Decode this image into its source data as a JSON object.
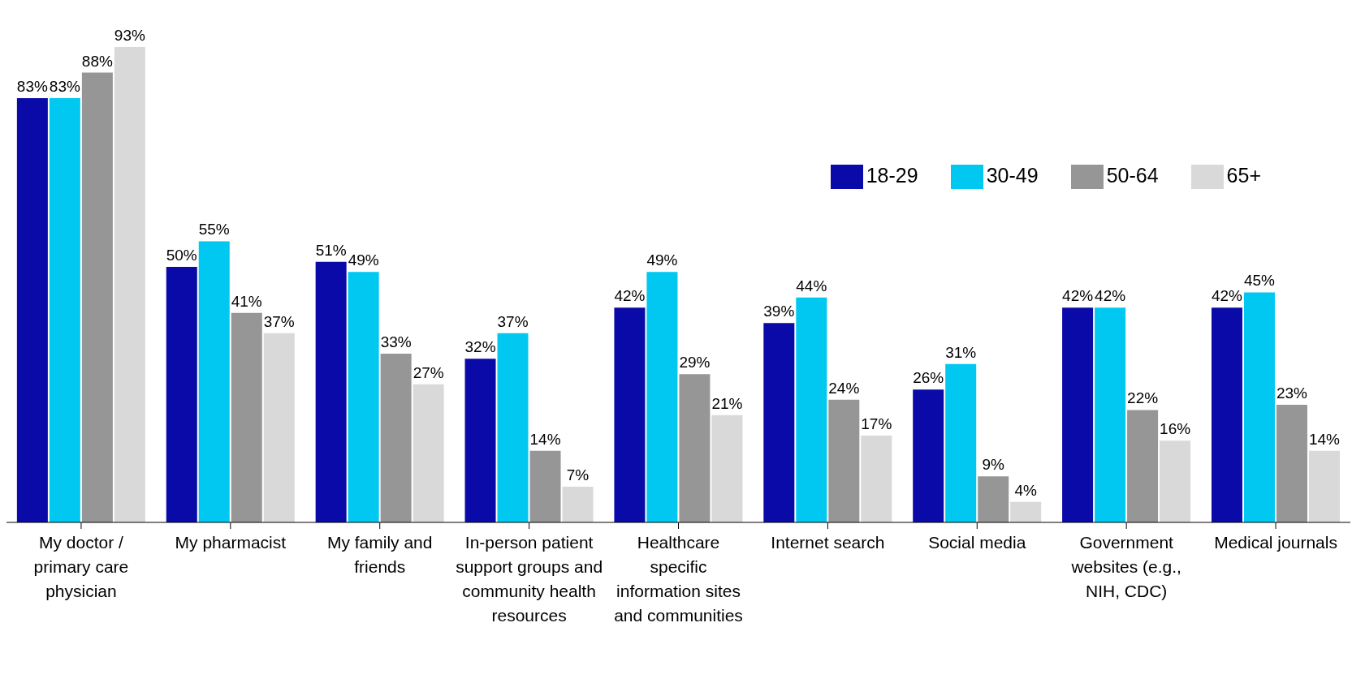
{
  "chart_data": {
    "type": "bar",
    "categories": [
      "My doctor / primary care physician",
      "My pharmacist",
      "My family and friends",
      "In-person patient support groups and community health resources",
      "Healthcare specific information sites and communities",
      "Internet search",
      "Social media",
      "Government websites (e.g., NIH, CDC)",
      "Medical journals"
    ],
    "series": [
      {
        "name": "18-29",
        "color": "#0a0aa8",
        "values": [
          83,
          50,
          51,
          32,
          42,
          39,
          26,
          42,
          42
        ],
        "value_labels": [
          "83%",
          "50%",
          "51%",
          "32%",
          "42%",
          "39%",
          "26%",
          "42%",
          "42%"
        ]
      },
      {
        "name": "30-49",
        "color": "#00c8f0",
        "values": [
          83,
          55,
          49,
          37,
          49,
          44,
          31,
          42,
          45
        ],
        "value_labels": [
          "83%",
          "55%",
          "49%",
          "37%",
          "49%",
          "44%",
          "31%",
          "42%",
          "45%"
        ]
      },
      {
        "name": "50-64",
        "color": "#969696",
        "values": [
          88,
          41,
          33,
          14,
          29,
          24,
          9,
          22,
          23
        ],
        "value_labels": [
          "88%",
          "41%",
          "33%",
          "14%",
          "29%",
          "24%",
          "9%",
          "22%",
          "23%"
        ]
      },
      {
        "name": "65+",
        "color": "#d9d9d9",
        "values": [
          93,
          37,
          27,
          7,
          21,
          17,
          4,
          16,
          14
        ],
        "value_labels": [
          "93%",
          "37%",
          "27%",
          "7%",
          "21%",
          "17%",
          "4%",
          "16%",
          "14%"
        ]
      }
    ],
    "grid": false,
    "legend": "top right"
  }
}
